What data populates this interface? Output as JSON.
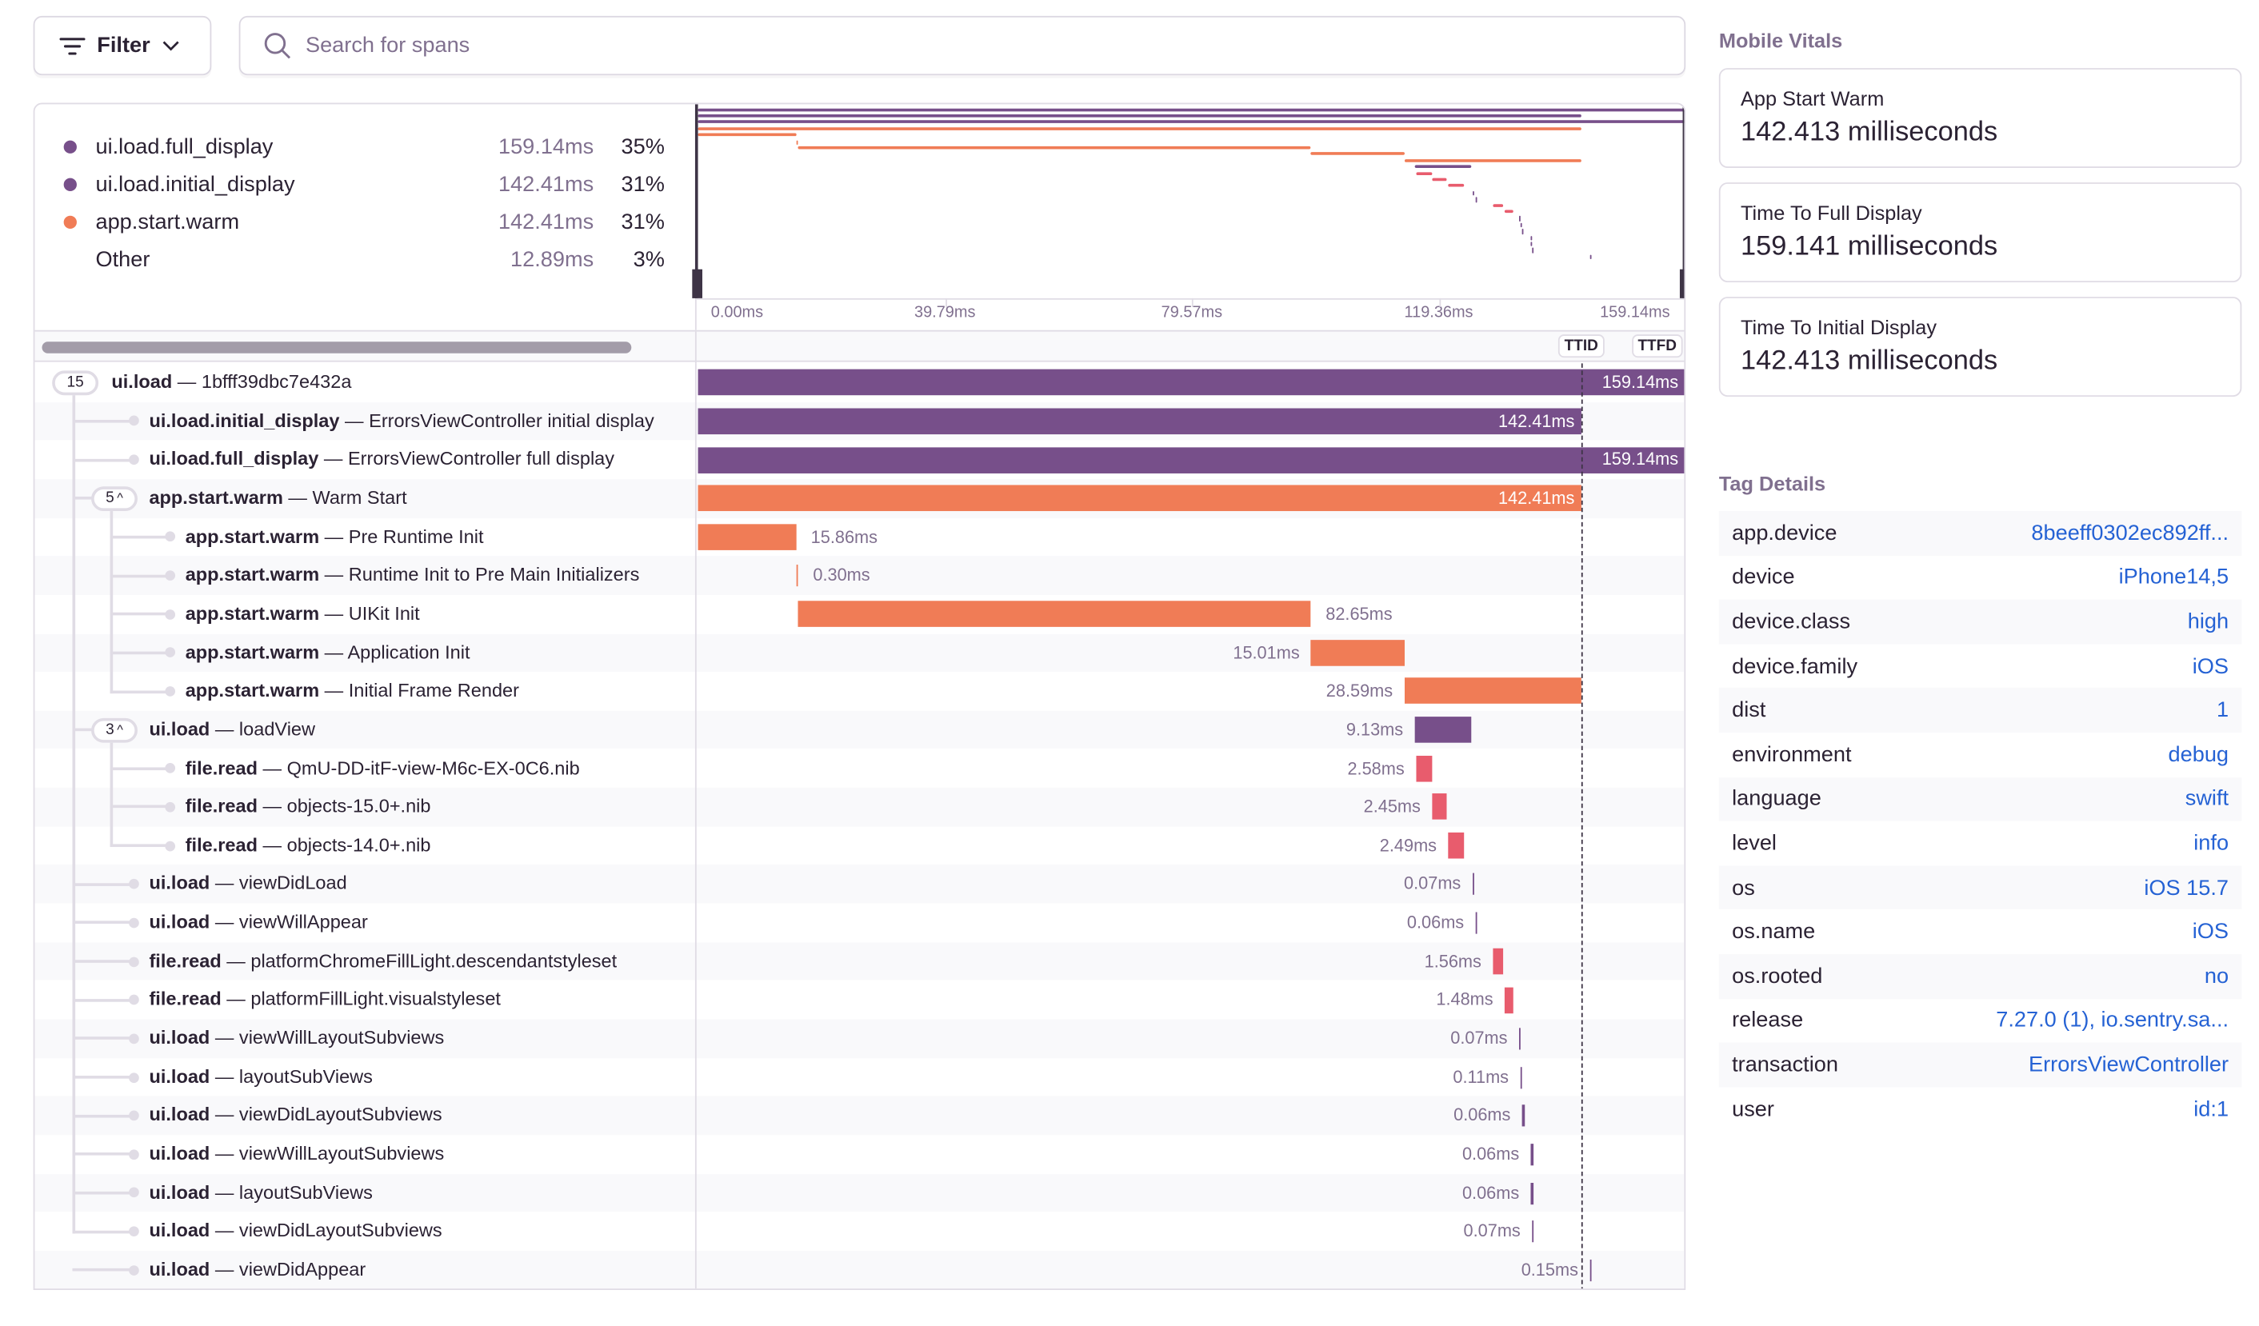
{
  "toolbar": {
    "filter_label": "Filter",
    "search_placeholder": "Search for spans"
  },
  "colors": {
    "purple": "#774f8a",
    "orange": "#f07c56",
    "red": "#e85c6d",
    "link": "#2562d4"
  },
  "legend": [
    {
      "name": "ui.load.full_display",
      "duration": "159.14ms",
      "percent": "35%",
      "color": "#774f8a"
    },
    {
      "name": "ui.load.initial_display",
      "duration": "142.41ms",
      "percent": "31%",
      "color": "#774f8a"
    },
    {
      "name": "app.start.warm",
      "duration": "142.41ms",
      "percent": "31%",
      "color": "#f07c56"
    },
    {
      "name": "Other",
      "duration": "12.89ms",
      "percent": "3%",
      "color": ""
    }
  ],
  "timeline": {
    "total_ms": 159.14,
    "ticks": [
      "0.00ms",
      "39.79ms",
      "79.57ms",
      "119.36ms",
      "159.14ms"
    ],
    "markers": [
      {
        "label": "TTID",
        "at_ms": 142.41
      },
      {
        "label": "TTFD",
        "at_ms": 159.14
      }
    ]
  },
  "spans": [
    {
      "depth": 0,
      "op": "ui.load",
      "desc": "1bfff39dbc7e432a",
      "badge": "15",
      "start_ms": 0,
      "duration_ms": 159.14,
      "label": "159.14ms",
      "color": "purple"
    },
    {
      "depth": 1,
      "op": "ui.load.initial_display",
      "desc": "ErrorsViewController initial display",
      "start_ms": 0,
      "duration_ms": 142.41,
      "label": "142.41ms",
      "color": "purple"
    },
    {
      "depth": 1,
      "op": "ui.load.full_display",
      "desc": "ErrorsViewController full display",
      "start_ms": 0,
      "duration_ms": 159.14,
      "label": "159.14ms",
      "color": "purple"
    },
    {
      "depth": 1,
      "op": "app.start.warm",
      "desc": "Warm Start",
      "badge": "5",
      "start_ms": 0,
      "duration_ms": 142.41,
      "label": "142.41ms",
      "color": "orange"
    },
    {
      "depth": 2,
      "op": "app.start.warm",
      "desc": "Pre Runtime Init",
      "start_ms": 0,
      "duration_ms": 15.86,
      "label": "15.86ms",
      "color": "orange"
    },
    {
      "depth": 2,
      "op": "app.start.warm",
      "desc": "Runtime Init to Pre Main Initializers",
      "start_ms": 15.86,
      "duration_ms": 0.3,
      "label": "0.30ms",
      "color": "orange"
    },
    {
      "depth": 2,
      "op": "app.start.warm",
      "desc": "UIKit Init",
      "start_ms": 16.16,
      "duration_ms": 82.65,
      "label": "82.65ms",
      "color": "orange"
    },
    {
      "depth": 2,
      "op": "app.start.warm",
      "desc": "Application Init",
      "start_ms": 98.81,
      "duration_ms": 15.01,
      "label": "15.01ms",
      "color": "orange"
    },
    {
      "depth": 2,
      "op": "app.start.warm",
      "desc": "Initial Frame Render",
      "start_ms": 113.82,
      "duration_ms": 28.59,
      "label": "28.59ms",
      "color": "orange"
    },
    {
      "depth": 1,
      "op": "ui.load",
      "desc": "loadView",
      "badge": "3",
      "start_ms": 115.5,
      "duration_ms": 9.13,
      "label": "9.13ms",
      "color": "purple"
    },
    {
      "depth": 2,
      "op": "file.read",
      "desc": "QmU-DD-itF-view-M6c-EX-0C6.nib",
      "start_ms": 115.7,
      "duration_ms": 2.58,
      "label": "2.58ms",
      "color": "red"
    },
    {
      "depth": 2,
      "op": "file.read",
      "desc": "objects-15.0+.nib",
      "start_ms": 118.3,
      "duration_ms": 2.45,
      "label": "2.45ms",
      "color": "red"
    },
    {
      "depth": 2,
      "op": "file.read",
      "desc": "objects-14.0+.nib",
      "start_ms": 120.9,
      "duration_ms": 2.49,
      "label": "2.49ms",
      "color": "red"
    },
    {
      "depth": 1,
      "op": "ui.load",
      "desc": "viewDidLoad",
      "start_ms": 124.8,
      "duration_ms": 0.07,
      "label": "0.07ms",
      "color": "purple"
    },
    {
      "depth": 1,
      "op": "ui.load",
      "desc": "viewWillAppear",
      "start_ms": 125.3,
      "duration_ms": 0.06,
      "label": "0.06ms",
      "color": "purple"
    },
    {
      "depth": 1,
      "op": "file.read",
      "desc": "platformChromeFillLight.descendantstyleset",
      "start_ms": 128.1,
      "duration_ms": 1.56,
      "label": "1.56ms",
      "color": "red"
    },
    {
      "depth": 1,
      "op": "file.read",
      "desc": "platformFillLight.visualstyleset",
      "start_ms": 130.0,
      "duration_ms": 1.48,
      "label": "1.48ms",
      "color": "red"
    },
    {
      "depth": 1,
      "op": "ui.load",
      "desc": "viewWillLayoutSubviews",
      "start_ms": 132.3,
      "duration_ms": 0.07,
      "label": "0.07ms",
      "color": "purple"
    },
    {
      "depth": 1,
      "op": "ui.load",
      "desc": "layoutSubViews",
      "start_ms": 132.5,
      "duration_ms": 0.11,
      "label": "0.11ms",
      "color": "purple"
    },
    {
      "depth": 1,
      "op": "ui.load",
      "desc": "viewDidLayoutSubviews",
      "start_ms": 132.8,
      "duration_ms": 0.06,
      "label": "0.06ms",
      "color": "purple"
    },
    {
      "depth": 1,
      "op": "ui.load",
      "desc": "viewWillLayoutSubviews",
      "start_ms": 134.2,
      "duration_ms": 0.06,
      "label": "0.06ms",
      "color": "purple"
    },
    {
      "depth": 1,
      "op": "ui.load",
      "desc": "layoutSubViews",
      "start_ms": 134.2,
      "duration_ms": 0.06,
      "label": "0.06ms",
      "color": "purple"
    },
    {
      "depth": 1,
      "op": "ui.load",
      "desc": "viewDidLayoutSubviews",
      "start_ms": 134.4,
      "duration_ms": 0.07,
      "label": "0.07ms",
      "color": "purple"
    },
    {
      "depth": 1,
      "op": "ui.load",
      "desc": "viewDidAppear",
      "start_ms": 143.7,
      "duration_ms": 0.15,
      "label": "0.15ms",
      "color": "purple"
    }
  ],
  "mobile_vitals": {
    "title": "Mobile Vitals",
    "items": [
      {
        "label": "App Start Warm",
        "value": "142.413 milliseconds"
      },
      {
        "label": "Time To Full Display",
        "value": "159.141 milliseconds"
      },
      {
        "label": "Time To Initial Display",
        "value": "142.413 milliseconds"
      }
    ]
  },
  "tag_details": {
    "title": "Tag Details",
    "items": [
      {
        "key": "app.device",
        "value": "8beeff0302ec892ff..."
      },
      {
        "key": "device",
        "value": "iPhone14,5"
      },
      {
        "key": "device.class",
        "value": "high"
      },
      {
        "key": "device.family",
        "value": "iOS"
      },
      {
        "key": "dist",
        "value": "1"
      },
      {
        "key": "environment",
        "value": "debug"
      },
      {
        "key": "language",
        "value": "swift"
      },
      {
        "key": "level",
        "value": "info"
      },
      {
        "key": "os",
        "value": "iOS 15.7"
      },
      {
        "key": "os.name",
        "value": "iOS"
      },
      {
        "key": "os.rooted",
        "value": "no"
      },
      {
        "key": "release",
        "value": "7.27.0 (1), io.sentry.sa..."
      },
      {
        "key": "transaction",
        "value": "ErrorsViewController"
      },
      {
        "key": "user",
        "value": "id:1"
      }
    ]
  }
}
